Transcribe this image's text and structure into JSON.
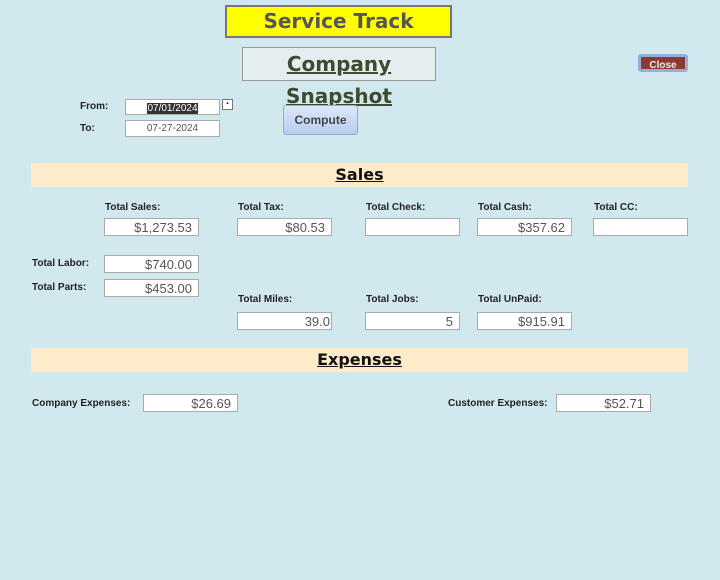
{
  "header": {
    "app_title": "Service Track",
    "page_title": "Company Snapshot",
    "close_label": "Close"
  },
  "filters": {
    "from_label": "From:",
    "from_value": "07/01/2024",
    "to_label": "To:",
    "to_value": "07-27-2024",
    "compute_label": "Compute"
  },
  "sales": {
    "title": "Sales",
    "total_sales_label": "Total Sales:",
    "total_sales": "$1,273.53",
    "total_tax_label": "Total Tax:",
    "total_tax": "$80.53",
    "total_check_label": "Total Check:",
    "total_check": "",
    "total_cash_label": "Total Cash:",
    "total_cash": "$357.62",
    "total_cc_label": "Total CC:",
    "total_cc": "",
    "total_labor_label": "Total Labor:",
    "total_labor": "$740.00",
    "total_parts_label": "Total Parts:",
    "total_parts": "$453.00",
    "total_miles_label": "Total Miles:",
    "total_miles": "39.0",
    "total_jobs_label": "Total Jobs:",
    "total_jobs": "5",
    "total_unpaid_label": "Total UnPaid:",
    "total_unpaid": "$915.91"
  },
  "expenses": {
    "title": "Expenses",
    "company_label": "Company Expenses:",
    "company_value": "$26.69",
    "customer_label": "Customer Expenses:",
    "customer_value": "$52.71"
  }
}
